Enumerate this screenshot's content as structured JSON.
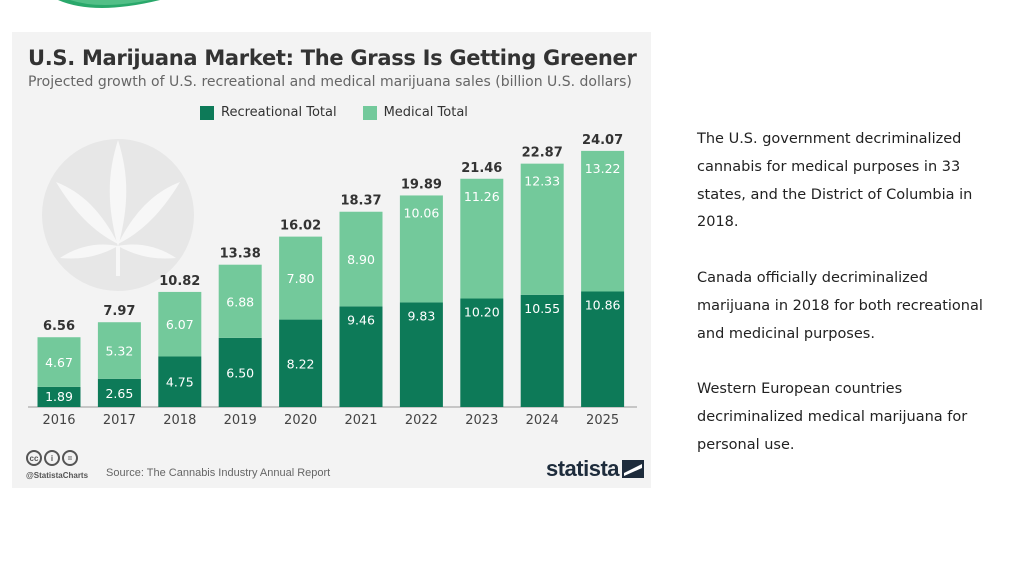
{
  "slide": {
    "paragraphs": [
      "The U.S. government decriminalized cannabis for medical purposes in 33 states, and the District of Columbia in 2018.",
      "Canada officially decriminalized marijuana in 2018 for both recreational and medicinal purposes.",
      "Western European countries decriminalized medical marijuana for personal use."
    ]
  },
  "footer": {
    "handle": "@StatistaCharts",
    "source": "Source: The Cannabis Industry Annual Report",
    "brand": "statista",
    "cc_badges": [
      "cc",
      "i",
      "="
    ]
  },
  "colors": {
    "recreational": "#0d7a58",
    "medical": "#73c99b",
    "card_bg": "#f3f3f3",
    "swoosh": "#2aa86b"
  },
  "chart_data": {
    "type": "bar",
    "stacked": true,
    "title": "U.S. Marijuana Market: The Grass Is Getting Greener",
    "subtitle": "Projected growth of U.S. recreational and medical marijuana sales (billion U.S. dollars)",
    "categories": [
      "2016",
      "2017",
      "2018",
      "2019",
      "2020",
      "2021",
      "2022",
      "2023",
      "2024",
      "2025"
    ],
    "series": [
      {
        "name": "Recreational Total",
        "values": [
          1.89,
          2.65,
          4.75,
          6.5,
          8.22,
          9.46,
          9.83,
          10.2,
          10.55,
          10.86
        ]
      },
      {
        "name": "Medical Total",
        "values": [
          4.67,
          5.32,
          6.07,
          6.88,
          7.8,
          8.9,
          10.06,
          11.26,
          12.33,
          13.22
        ]
      }
    ],
    "totals": [
      6.56,
      7.97,
      10.82,
      13.38,
      16.02,
      18.37,
      19.89,
      21.46,
      22.87,
      24.07
    ],
    "ylim": [
      0,
      24.07
    ],
    "grid": false,
    "legend": "top-center"
  }
}
